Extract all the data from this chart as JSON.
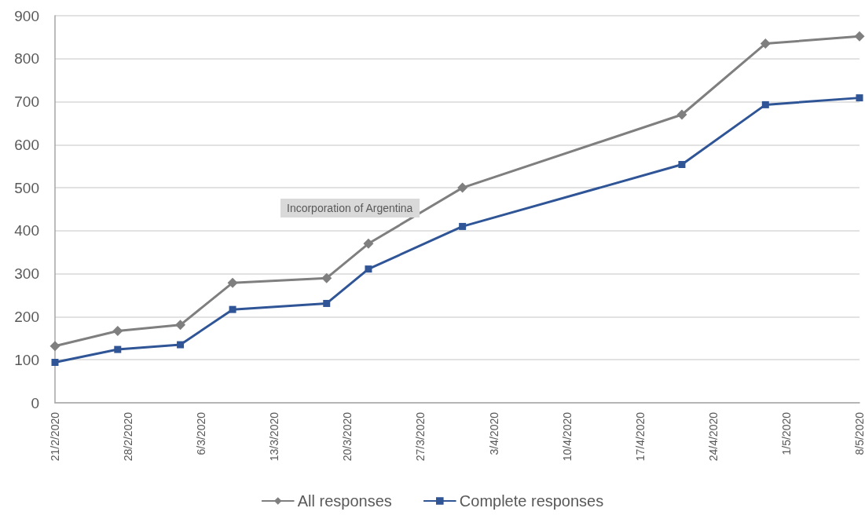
{
  "chart_data": {
    "type": "line",
    "x": [
      "2020-02-21",
      "2020-02-27",
      "2020-03-04",
      "2020-03-09",
      "2020-03-18",
      "2020-03-22",
      "2020-03-31",
      "2020-04-21",
      "2020-04-29",
      "2020-05-08"
    ],
    "series": [
      {
        "name": "All responses",
        "color": "#7f7f7f",
        "marker": "diamond",
        "values": [
          132,
          167,
          181,
          279,
          290,
          370,
          500,
          670,
          835,
          852
        ]
      },
      {
        "name": "Complete responses",
        "color": "#2f5597",
        "marker": "square",
        "values": [
          94,
          124,
          135,
          217,
          231,
          311,
          410,
          554,
          693,
          709
        ]
      }
    ],
    "xlim": [
      "2020-02-21",
      "2020-05-08"
    ],
    "xticks": [
      {
        "value": "2020-02-21",
        "label": "21/2/2020"
      },
      {
        "value": "2020-02-28",
        "label": "28/2/2020"
      },
      {
        "value": "2020-03-06",
        "label": "6/3/2020"
      },
      {
        "value": "2020-03-13",
        "label": "13/3/2020"
      },
      {
        "value": "2020-03-20",
        "label": "20/3/2020"
      },
      {
        "value": "2020-03-27",
        "label": "27/3/2020"
      },
      {
        "value": "2020-04-03",
        "label": "3/4/2020"
      },
      {
        "value": "2020-04-10",
        "label": "10/4/2020"
      },
      {
        "value": "2020-04-17",
        "label": "17/4/2020"
      },
      {
        "value": "2020-04-24",
        "label": "24/4/2020"
      },
      {
        "value": "2020-05-01",
        "label": "1/5/2020"
      },
      {
        "value": "2020-05-08",
        "label": "8/5/2020"
      }
    ],
    "ylim": [
      0,
      900
    ],
    "yticks": [
      0,
      100,
      200,
      300,
      400,
      500,
      600,
      700,
      800,
      900
    ],
    "grid": "y",
    "legend": "bottom",
    "annotations": [
      "Incorporation of Argentina"
    ]
  }
}
